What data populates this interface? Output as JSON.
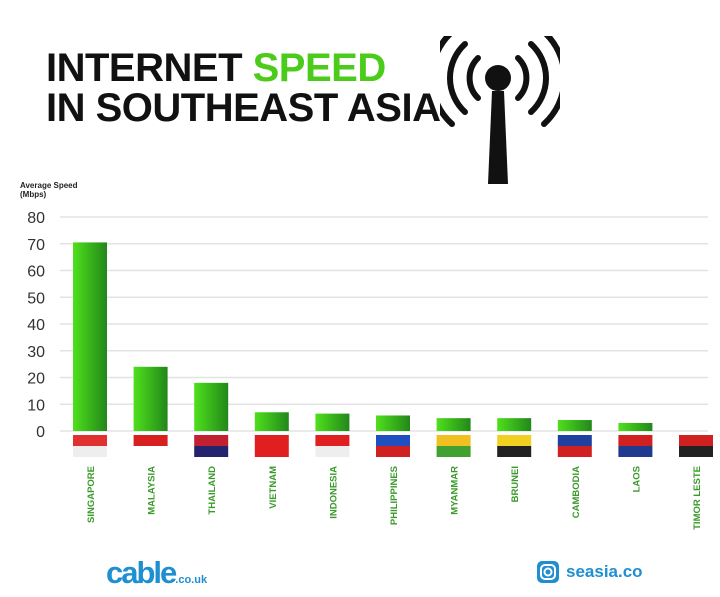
{
  "title": {
    "line1_a": "INTERNET ",
    "line1_b": "SPEED",
    "line2": "IN SOUTHEAST ASIA"
  },
  "colors": {
    "accent": "#4ccc1a",
    "bar": "#3fbf17",
    "brand": "#1e8fd0"
  },
  "icons": {
    "header": "wifi-antenna-icon",
    "social": "instagram-icon"
  },
  "chart_data": {
    "type": "bar",
    "ylabel": "Average Speed (Mbps)",
    "ylabel_line1": "Average Speed",
    "ylabel_line2": "(Mbps)",
    "ylim": [
      0,
      80
    ],
    "yticks": [
      0,
      10,
      20,
      30,
      40,
      50,
      60,
      70,
      80
    ],
    "grid": true,
    "categories": [
      "SINGAPORE",
      "MALAYSIA",
      "THAILAND",
      "VIETNAM",
      "INDONESIA",
      "PHILIPPINES",
      "MYANMAR",
      "BRUNEI",
      "CAMBODIA",
      "LAOS",
      "TIMOR LESTE"
    ],
    "values": [
      70.5,
      24,
      18,
      7,
      6.5,
      5.8,
      4.8,
      4.8,
      4.1,
      3,
      0
    ]
  },
  "footer": {
    "cable": "cable",
    "cable_suffix": ".co.uk",
    "seasia": "seasia.co"
  }
}
